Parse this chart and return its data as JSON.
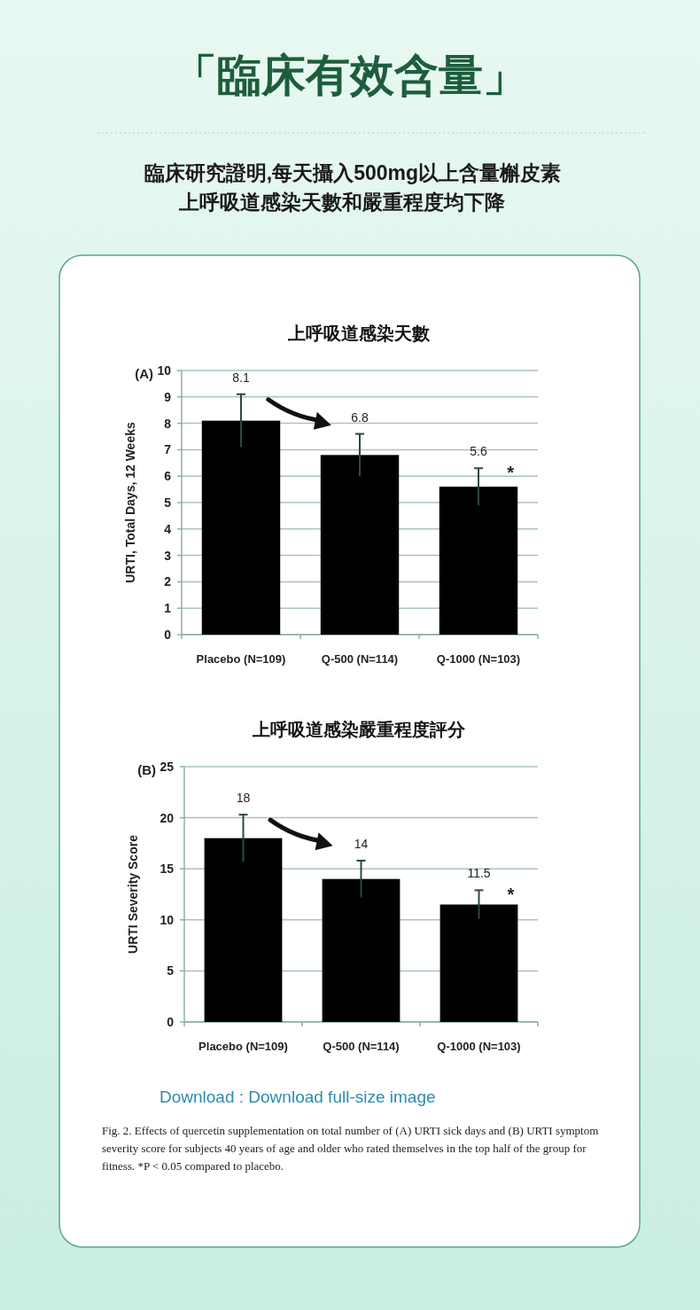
{
  "chart_data": [
    {
      "type": "bar",
      "title": "上呼吸道感染天數",
      "ylabel": "URTI, Total Days, 12 Weeks",
      "categories": [
        "Placebo (N=109)",
        "Q-500 (N=114)",
        "Q-1000 (N=103)"
      ],
      "values": [
        8.1,
        6.8,
        5.6
      ],
      "errors": [
        1.0,
        0.8,
        0.7
      ],
      "color": "#000000",
      "ylim": [
        0,
        10
      ],
      "yticks": [
        0,
        1,
        2,
        3,
        4,
        5,
        6,
        7,
        8,
        9,
        10
      ],
      "grid": "y",
      "data_labels": true,
      "annotations": [
        "「臨床有效含量」",
        "臨床研究證明,每天攝入500mg以上含量槲皮素",
        "上呼吸道感染天數和嚴重程度均下降",
        "(A)",
        {
          "text": "*",
          "x": "Q-1000 (N=103)",
          "y": 6.3
        }
      ]
    },
    {
      "type": "bar",
      "title": "上呼吸道感染嚴重程度評分",
      "ylabel": "URTI Severity Score",
      "categories": [
        "Placebo (N=109)",
        "Q-500 (N=114)",
        "Q-1000 (N=103)"
      ],
      "values": [
        18,
        14,
        11.5
      ],
      "errors": [
        2.3,
        1.8,
        1.4
      ],
      "color": "#000000",
      "ylim": [
        0,
        25
      ],
      "yticks": [
        0,
        5,
        10,
        15,
        20,
        25
      ],
      "grid": "y",
      "data_labels": true,
      "annotations": [
        "(B)",
        "Download : Download full-size image",
        "Fig. 2. Effects of quercetin supplementation on total number of (A) URTI sick days and (B) URTI symptom severity score for subjects 40 years of age and older who rated themselves in the top half of the group for fitness. *P < 0.05 compared to placebo.",
        {
          "text": "*",
          "x": "Q-1000 (N=103)",
          "y": 12.9
        }
      ]
    }
  ]
}
